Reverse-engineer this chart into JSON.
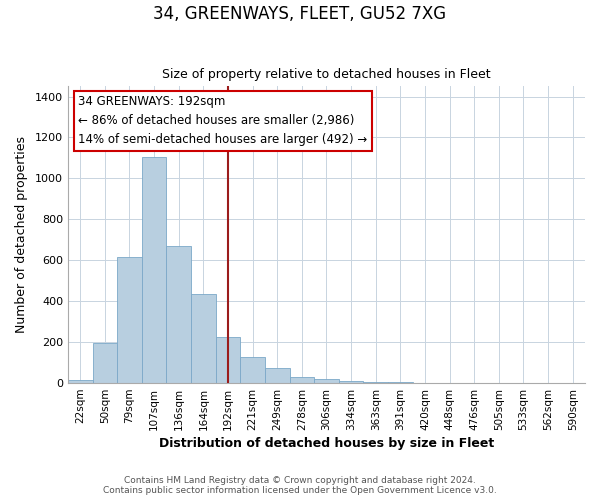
{
  "title": "34, GREENWAYS, FLEET, GU52 7XG",
  "subtitle": "Size of property relative to detached houses in Fleet",
  "xlabel": "Distribution of detached houses by size in Fleet",
  "ylabel": "Number of detached properties",
  "bar_labels": [
    "22sqm",
    "50sqm",
    "79sqm",
    "107sqm",
    "136sqm",
    "164sqm",
    "192sqm",
    "221sqm",
    "249sqm",
    "278sqm",
    "306sqm",
    "334sqm",
    "363sqm",
    "391sqm",
    "420sqm",
    "448sqm",
    "476sqm",
    "505sqm",
    "533sqm",
    "562sqm",
    "590sqm"
  ],
  "bar_values": [
    15,
    195,
    615,
    1105,
    670,
    435,
    225,
    125,
    75,
    30,
    20,
    8,
    5,
    3,
    2,
    2,
    0,
    0,
    0,
    0,
    0
  ],
  "highlight_index": 6,
  "bar_color": "#b8cfe0",
  "bar_edge_color": "#7ba8c8",
  "highlight_color": "#9b1c1c",
  "annotation_line1": "34 GREENWAYS: 192sqm",
  "annotation_line2": "← 86% of detached houses are smaller (2,986)",
  "annotation_line3": "14% of semi-detached houses are larger (492) →",
  "footer1": "Contains HM Land Registry data © Crown copyright and database right 2024.",
  "footer2": "Contains public sector information licensed under the Open Government Licence v3.0.",
  "ylim": [
    0,
    1450
  ],
  "figsize": [
    6.0,
    5.0
  ],
  "dpi": 100
}
